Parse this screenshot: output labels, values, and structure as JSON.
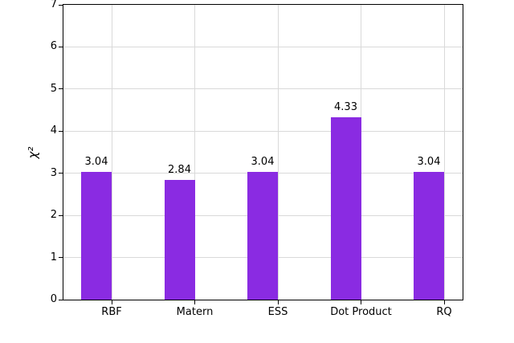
{
  "chart_data": {
    "type": "bar",
    "categories": [
      "RBF",
      "Matern",
      "ESS",
      "Dot Product",
      "RQ"
    ],
    "values": [
      3.04,
      2.84,
      3.04,
      4.33,
      3.04
    ],
    "bar_labels": [
      "3.04",
      "2.84",
      "3.04",
      "4.33",
      "3.04"
    ],
    "title": "",
    "xlabel": "",
    "ylabel": "χ²",
    "ylim": [
      0,
      7
    ],
    "yticks": [
      0,
      1,
      2,
      3,
      4,
      5,
      6,
      7
    ],
    "grid": "on",
    "legend": "none",
    "bar_color": "#8a2be2",
    "grid_color": "#d9d9d9",
    "axis_color": "#000000",
    "text_color": "#000000",
    "background_color": "#ffffff"
  }
}
